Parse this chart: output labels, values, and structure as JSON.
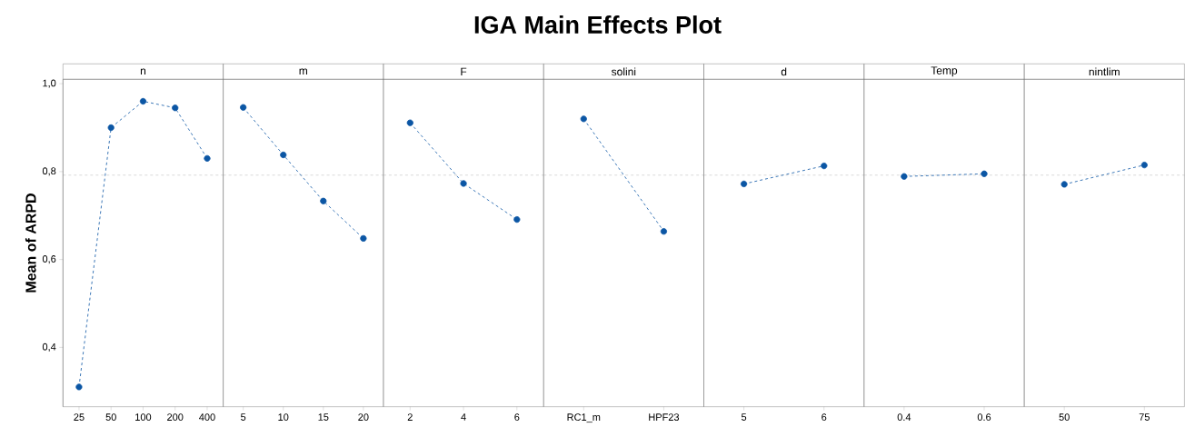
{
  "chart_data": {
    "type": "line",
    "title": "IGA Main Effects Plot",
    "ylabel": "Mean of ARPD",
    "categories": [
      "25",
      "50",
      "100",
      "200",
      "400",
      "5",
      "10",
      "15",
      "20",
      "2",
      "4",
      "6",
      "RC1_m",
      "HPF23",
      "5",
      "6",
      "0.4",
      "0.6",
      "50",
      "75"
    ],
    "series": [
      {
        "color": "#0b56a4",
        "values": [
          0.31,
          0.9,
          0.96,
          0.945,
          0.83,
          null,
          null,
          null,
          null,
          null,
          null,
          null,
          null,
          null,
          null,
          null,
          null,
          null,
          null,
          null
        ]
      },
      {
        "color": "#0b56a4",
        "values": [
          null,
          null,
          null,
          null,
          null,
          0.946,
          0.838,
          0.733,
          0.648,
          null,
          null,
          null,
          null,
          null,
          null,
          null,
          null,
          null,
          null,
          null
        ]
      },
      {
        "color": "#0b56a4",
        "values": [
          null,
          null,
          null,
          null,
          null,
          null,
          null,
          null,
          null,
          0.911,
          0.773,
          0.691,
          null,
          null,
          null,
          null,
          null,
          null,
          null,
          null
        ]
      },
      {
        "color": "#0b56a4",
        "values": [
          null,
          null,
          null,
          null,
          null,
          null,
          null,
          null,
          null,
          null,
          null,
          null,
          0.92,
          0.664,
          null,
          null,
          null,
          null,
          null,
          null
        ]
      },
      {
        "color": "#0b56a4",
        "values": [
          null,
          null,
          null,
          null,
          null,
          null,
          null,
          null,
          null,
          null,
          null,
          null,
          null,
          null,
          0.772,
          0.813,
          null,
          null,
          null,
          null
        ]
      },
      {
        "color": "#0b56a4",
        "values": [
          null,
          null,
          null,
          null,
          null,
          null,
          null,
          null,
          null,
          null,
          null,
          null,
          null,
          null,
          null,
          null,
          0.789,
          0.795,
          null,
          null
        ]
      },
      {
        "color": "#0b56a4",
        "values": [
          null,
          null,
          null,
          null,
          null,
          null,
          null,
          null,
          null,
          null,
          null,
          null,
          null,
          null,
          null,
          null,
          null,
          null,
          0.771,
          0.815
        ]
      }
    ],
    "annotations": [
      "n",
      "m",
      "F",
      "solini",
      "d",
      "Temp",
      "nintlim"
    ],
    "marker": "circle",
    "line_style": "dashed",
    "ylim": [
      0.265,
      1.01
    ],
    "yticks": [
      {
        "value": 0.4,
        "label": "0,4"
      },
      {
        "value": 0.6,
        "label": "0,6"
      },
      {
        "value": 0.8,
        "label": "0,8"
      },
      {
        "value": 1.0,
        "label": "1,0"
      }
    ],
    "ref_lines": [
      {
        "axis": "y",
        "value": 0.792,
        "color": "#a0a0a0",
        "line_style": "dashed"
      }
    ]
  }
}
